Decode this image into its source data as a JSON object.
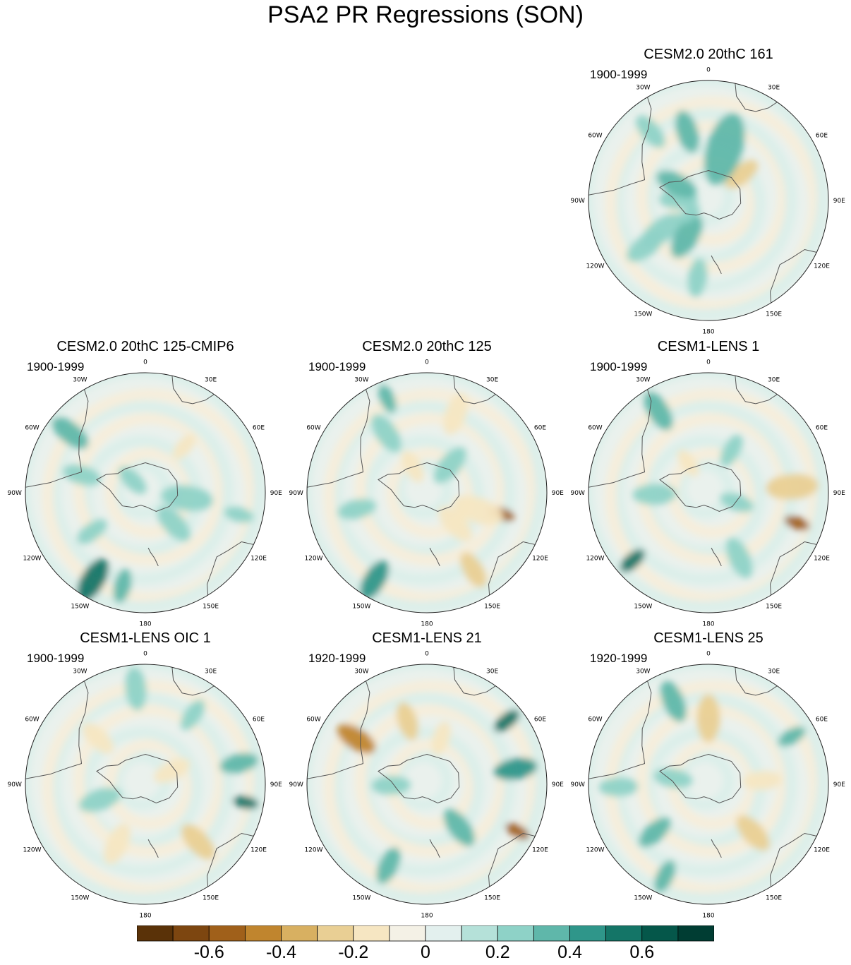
{
  "title": "PSA2 PR Regressions (SON)",
  "panels": [
    {
      "title": "CESM2.0 20thC 161",
      "period": "1900-1999"
    },
    {
      "title": "CESM2.0 20thC 125-CMIP6",
      "period": "1900-1999"
    },
    {
      "title": "CESM2.0 20thC 125",
      "period": "1900-1999"
    },
    {
      "title": "CESM1-LENS 1",
      "period": "1900-1999"
    },
    {
      "title": "CESM1-LENS OIC 1",
      "period": "1900-1999"
    },
    {
      "title": "CESM1-LENS 21",
      "period": "1920-1999"
    },
    {
      "title": "CESM1-LENS 25",
      "period": "1920-1999"
    }
  ],
  "longitude_labels": [
    "0",
    "30E",
    "60E",
    "90E",
    "120E",
    "150E",
    "180",
    "150W",
    "120W",
    "90W",
    "60W",
    "30W"
  ],
  "colorbar": {
    "colors": [
      "#5a3208",
      "#7d4610",
      "#a0601a",
      "#c0852e",
      "#d8b061",
      "#e9cf94",
      "#f6e6c2",
      "#f4f1e6",
      "#e3f0ee",
      "#b5e1d9",
      "#8ed2c7",
      "#5fb7aa",
      "#2f968a",
      "#147567",
      "#05574a",
      "#003d33"
    ],
    "tick_labels": [
      "-0.6",
      "-0.4",
      "-0.2",
      "0",
      "0.2",
      "0.4",
      "0.6"
    ],
    "tick_values": [
      -0.6,
      -0.4,
      -0.2,
      0,
      0.2,
      0.4,
      0.6
    ],
    "range": [
      -0.8,
      0.8
    ]
  },
  "blobs": [
    [
      [
        -0.25,
        1.6,
        0.45,
        0.2
      ],
      [
        -0.45,
        1.0,
        0.55,
        0.25
      ],
      [
        0.35,
        0.9,
        0.45,
        -0.3
      ],
      [
        0.45,
        0.3,
        0.85,
        0.35
      ],
      [
        0.6,
        -0.3,
        0.5,
        0.3
      ],
      [
        0.75,
        -0.7,
        0.45,
        0.25
      ],
      [
        0.3,
        -1.1,
        0.5,
        0.3
      ],
      [
        0.65,
        -2.2,
        0.5,
        0.2
      ],
      [
        0.35,
        -2.6,
        0.55,
        0.35
      ],
      [
        0.65,
        -3.0,
        0.45,
        0.2
      ],
      [
        0.2,
        -2.2,
        0.3,
        0.25
      ]
    ],
    [
      [
        0.8,
        -0.9,
        0.5,
        0.3
      ],
      [
        0.85,
        -2.6,
        0.55,
        0.5
      ],
      [
        0.8,
        -2.9,
        0.4,
        0.35
      ],
      [
        0.55,
        -2.2,
        0.4,
        0.25
      ],
      [
        0.15,
        -0.8,
        0.4,
        0.25
      ],
      [
        0.5,
        0.7,
        0.35,
        -0.2
      ],
      [
        0.35,
        1.7,
        0.6,
        0.25
      ],
      [
        0.35,
        2.4,
        0.5,
        0.2
      ],
      [
        0.8,
        1.8,
        0.35,
        0.2
      ],
      [
        0.55,
        -1.3,
        0.45,
        0.25
      ]
    ],
    [
      [
        0.65,
        1.85,
        0.3,
        -0.55
      ],
      [
        0.45,
        1.9,
        0.6,
        -0.2
      ],
      [
        0.35,
        2.4,
        0.5,
        -0.15
      ],
      [
        0.25,
        -0.5,
        0.4,
        -0.15
      ],
      [
        0.6,
        -0.6,
        0.5,
        0.25
      ],
      [
        0.85,
        -0.4,
        0.35,
        0.3
      ],
      [
        0.85,
        -2.6,
        0.5,
        0.4
      ],
      [
        0.6,
        -1.8,
        0.45,
        0.25
      ],
      [
        0.3,
        0.7,
        0.5,
        0.2
      ],
      [
        0.7,
        0.35,
        0.5,
        -0.2
      ],
      [
        0.75,
        2.6,
        0.45,
        -0.3
      ]
    ],
    [
      [
        0.78,
        1.9,
        0.3,
        -0.6
      ],
      [
        0.7,
        1.5,
        0.6,
        -0.3
      ],
      [
        0.85,
        -2.3,
        0.35,
        0.55
      ],
      [
        0.8,
        -0.55,
        0.5,
        0.3
      ],
      [
        0.45,
        -1.6,
        0.5,
        0.2
      ],
      [
        0.25,
        1.9,
        0.4,
        0.25
      ],
      [
        0.4,
        0.5,
        0.4,
        0.2
      ],
      [
        0.6,
        2.7,
        0.5,
        0.25
      ],
      [
        0.3,
        -0.6,
        0.35,
        -0.15
      ]
    ],
    [
      [
        0.85,
        1.75,
        0.3,
        0.55
      ],
      [
        0.8,
        1.35,
        0.45,
        0.3
      ],
      [
        0.55,
        -0.8,
        0.45,
        -0.2
      ],
      [
        0.65,
        2.4,
        0.5,
        -0.25
      ],
      [
        0.4,
        -1.9,
        0.5,
        0.25
      ],
      [
        0.25,
        1.1,
        0.45,
        -0.15
      ],
      [
        0.7,
        0.6,
        0.4,
        0.2
      ],
      [
        0.55,
        -2.7,
        0.5,
        -0.2
      ],
      [
        0.8,
        -0.1,
        0.5,
        0.25
      ]
    ],
    [
      [
        0.85,
        2.05,
        0.3,
        -0.6
      ],
      [
        0.85,
        0.9,
        0.35,
        0.55
      ],
      [
        0.75,
        1.4,
        0.5,
        0.45
      ],
      [
        0.7,
        -1.0,
        0.5,
        -0.45
      ],
      [
        0.55,
        -0.3,
        0.45,
        -0.3
      ],
      [
        0.45,
        2.5,
        0.5,
        0.3
      ],
      [
        0.3,
        -1.6,
        0.45,
        0.2
      ],
      [
        0.75,
        -2.7,
        0.45,
        0.3
      ],
      [
        0.4,
        0.3,
        0.4,
        -0.2
      ]
    ],
    [
      [
        0.55,
        0.0,
        0.55,
        -0.3
      ],
      [
        0.75,
        -0.4,
        0.5,
        0.3
      ],
      [
        0.55,
        2.4,
        0.5,
        -0.3
      ],
      [
        0.6,
        -2.3,
        0.45,
        0.3
      ],
      [
        0.85,
        -2.7,
        0.4,
        0.3
      ],
      [
        0.3,
        -1.4,
        0.45,
        0.2
      ],
      [
        0.45,
        1.5,
        0.45,
        -0.2
      ],
      [
        0.8,
        1.05,
        0.35,
        0.3
      ],
      [
        0.75,
        -1.6,
        0.45,
        0.2
      ]
    ]
  ]
}
